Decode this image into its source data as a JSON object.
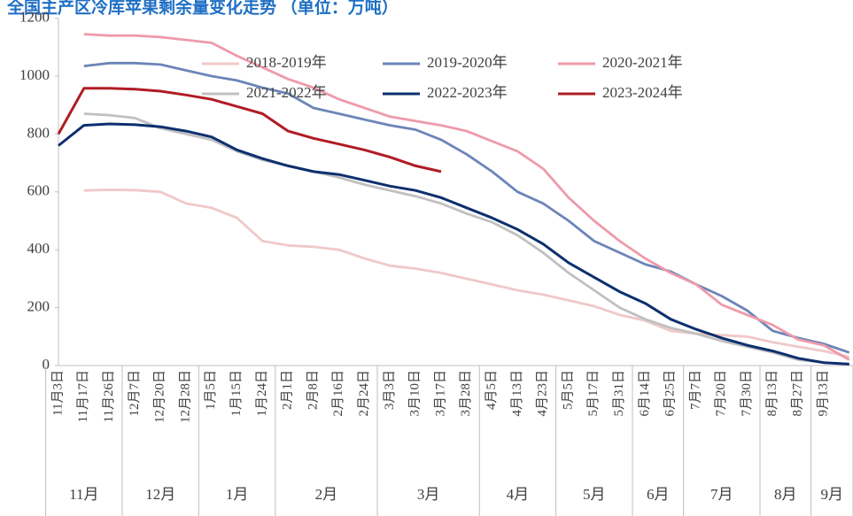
{
  "chart_data": {
    "type": "line",
    "title": "全国主产区冷库苹果剩余量变化走势 （单位：万吨）",
    "categories": [
      "11月3日",
      "11月17日",
      "11月26日",
      "12月7日",
      "12月20日",
      "12月28日",
      "1月5日",
      "1月15日",
      "1月24日",
      "2月1日",
      "2月8日",
      "2月16日",
      "2月24日",
      "3月3日",
      "3月10日",
      "3月17日",
      "3月28日",
      "4月5日",
      "4月13日",
      "4月23日",
      "5月5日",
      "5月17日",
      "5月31日",
      "6月14日",
      "6月25日",
      "7月7日",
      "7月20日",
      "7月30日",
      "8月13日",
      "8月27日",
      "9月13日",
      null
    ],
    "month_groups": [
      {
        "label": "11月",
        "count": 3
      },
      {
        "label": "12月",
        "count": 3
      },
      {
        "label": "1月",
        "count": 3
      },
      {
        "label": "2月",
        "count": 4
      },
      {
        "label": "3月",
        "count": 4
      },
      {
        "label": "4月",
        "count": 3
      },
      {
        "label": "5月",
        "count": 3
      },
      {
        "label": "6月",
        "count": 2
      },
      {
        "label": "7月",
        "count": 3
      },
      {
        "label": "8月",
        "count": 2
      },
      {
        "label": "9月",
        "count": 2
      }
    ],
    "ylim": [
      0,
      1200
    ],
    "yticks": [
      0,
      200,
      400,
      600,
      800,
      1000,
      1200
    ],
    "series": [
      {
        "name": "2018-2019年",
        "color": "#f0c8c8",
        "values": [
          null,
          605,
          607,
          606,
          600,
          560,
          545,
          510,
          430,
          415,
          410,
          400,
          370,
          345,
          335,
          320,
          300,
          280,
          260,
          245,
          225,
          205,
          175,
          155,
          120,
          110,
          105,
          100,
          80,
          65,
          50,
          30
        ]
      },
      {
        "name": "2019-2020年",
        "color": "#6b85b8",
        "values": [
          null,
          1035,
          1045,
          1045,
          1040,
          1020,
          1000,
          985,
          960,
          940,
          890,
          870,
          850,
          830,
          815,
          780,
          730,
          670,
          600,
          560,
          500,
          430,
          390,
          350,
          325,
          280,
          240,
          190,
          120,
          95,
          75,
          45
        ]
      },
      {
        "name": "2020-2021年",
        "color": "#ee9aaa",
        "values": [
          null,
          1145,
          1140,
          1140,
          1135,
          1125,
          1115,
          1070,
          1030,
          990,
          960,
          920,
          890,
          860,
          845,
          830,
          810,
          775,
          740,
          680,
          580,
          500,
          430,
          370,
          320,
          280,
          210,
          175,
          140,
          90,
          70,
          20
        ]
      },
      {
        "name": "2021-2022年",
        "color": "#c0c0c0",
        "values": [
          null,
          870,
          865,
          855,
          820,
          800,
          780,
          740,
          710,
          690,
          670,
          650,
          625,
          605,
          585,
          560,
          525,
          495,
          450,
          390,
          320,
          260,
          200,
          160,
          130,
          110,
          85,
          65,
          45,
          20,
          10,
          5
        ]
      },
      {
        "name": "2022-2023年",
        "color": "#0d2f6e",
        "values": [
          760,
          830,
          835,
          832,
          825,
          810,
          790,
          745,
          715,
          690,
          670,
          660,
          640,
          620,
          605,
          580,
          545,
          510,
          470,
          420,
          355,
          305,
          255,
          215,
          160,
          125,
          95,
          70,
          50,
          25,
          10,
          5
        ]
      },
      {
        "name": "2023-2024年",
        "color": "#b01c24",
        "values": [
          800,
          958,
          958,
          955,
          948,
          935,
          920,
          895,
          870,
          810,
          785,
          765,
          745,
          720,
          690,
          670,
          null,
          null,
          null,
          null,
          null,
          null,
          null,
          null,
          null,
          null,
          null,
          null,
          null,
          null,
          null,
          null
        ]
      }
    ]
  }
}
